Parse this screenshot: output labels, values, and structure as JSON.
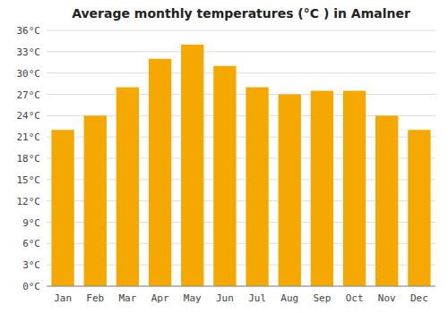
{
  "chart_data": {
    "type": "bar",
    "title": "Average monthly temperatures (°C ) in Amalner",
    "categories": [
      "Jan",
      "Feb",
      "Mar",
      "Apr",
      "May",
      "Jun",
      "Jul",
      "Aug",
      "Sep",
      "Oct",
      "Nov",
      "Dec"
    ],
    "values": [
      22,
      24,
      28,
      32,
      34,
      31,
      28,
      27,
      27.5,
      27.5,
      24,
      22
    ],
    "color": "#F5A800",
    "ylim": [
      0,
      36
    ],
    "yticks": [
      {
        "value": 0,
        "label": "0°C"
      },
      {
        "value": 3,
        "label": "3°C"
      },
      {
        "value": 6,
        "label": "6°C"
      },
      {
        "value": 9,
        "label": "9°C"
      },
      {
        "value": 12,
        "label": "12°C"
      },
      {
        "value": 15,
        "label": "15°C"
      },
      {
        "value": 18,
        "label": "18°C"
      },
      {
        "value": 21,
        "label": "21°C"
      },
      {
        "value": 24,
        "label": "24°C"
      },
      {
        "value": 27,
        "label": "27°C"
      },
      {
        "value": 30,
        "label": "30°C"
      },
      {
        "value": 33,
        "label": "33°C"
      },
      {
        "value": 36,
        "label": "36°C"
      }
    ],
    "grid": true
  }
}
